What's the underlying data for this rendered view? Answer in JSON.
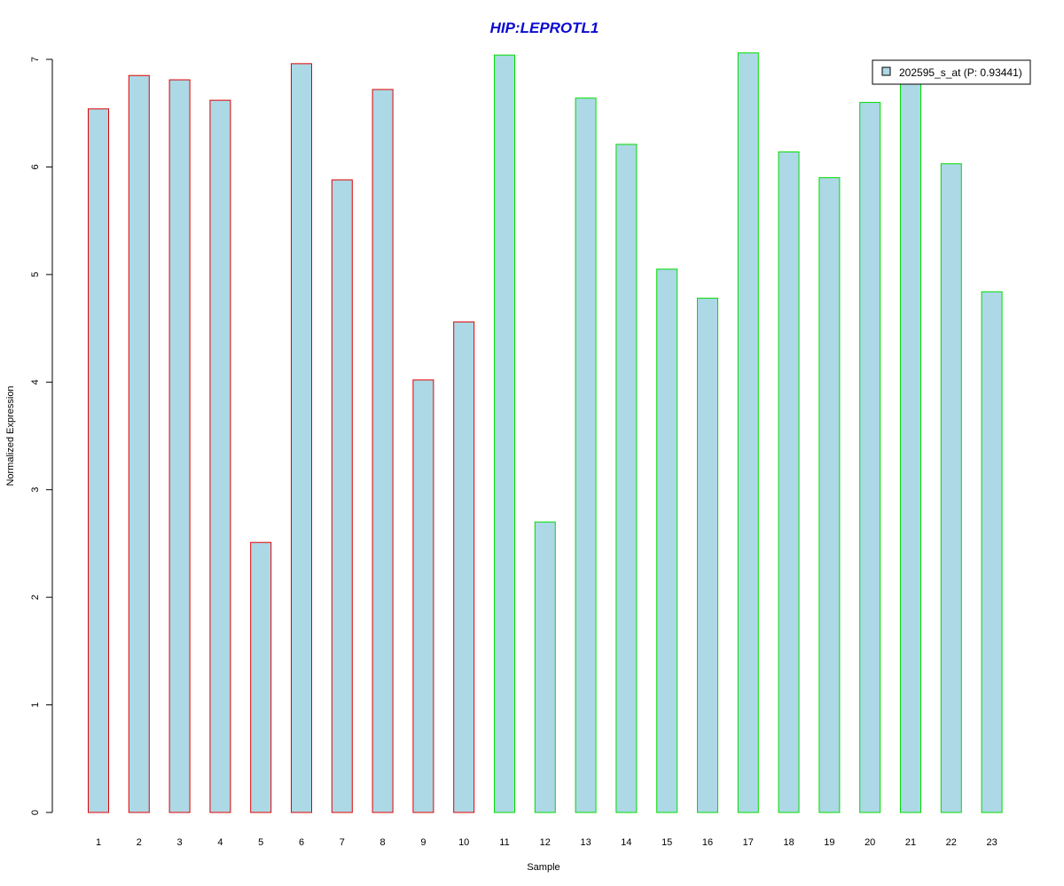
{
  "chart_data": {
    "type": "bar",
    "title": "HIP:LEPROTL1",
    "xlabel": "Sample",
    "ylabel": "Normalized Expression",
    "ylim": [
      0,
      7
    ],
    "yticks": [
      0,
      1,
      2,
      3,
      4,
      5,
      6,
      7
    ],
    "categories": [
      "1",
      "2",
      "3",
      "4",
      "5",
      "6",
      "7",
      "8",
      "9",
      "10",
      "11",
      "12",
      "13",
      "14",
      "15",
      "16",
      "17",
      "18",
      "19",
      "20",
      "21",
      "22",
      "23"
    ],
    "series": [
      {
        "name": "202595_s_at (P: 0.93441)",
        "values": [
          6.54,
          6.85,
          6.81,
          6.62,
          2.51,
          6.96,
          5.88,
          6.72,
          4.02,
          4.56,
          7.04,
          2.7,
          6.64,
          6.21,
          5.05,
          4.78,
          7.06,
          6.14,
          5.9,
          6.6,
          6.88,
          6.03,
          4.84
        ],
        "groups": [
          "a",
          "a",
          "a",
          "a",
          "a",
          "a",
          "a",
          "a",
          "a",
          "a",
          "b",
          "b",
          "b",
          "b",
          "b",
          "b",
          "b",
          "b",
          "b",
          "b",
          "b",
          "b",
          "b"
        ]
      }
    ],
    "legend_position": "top-right",
    "grid": false,
    "colors": {
      "bar_fill": "#add8e6",
      "group_a_border": "#e00000",
      "group_b_border": "#00dd00",
      "title": "#0a0ad0"
    }
  }
}
